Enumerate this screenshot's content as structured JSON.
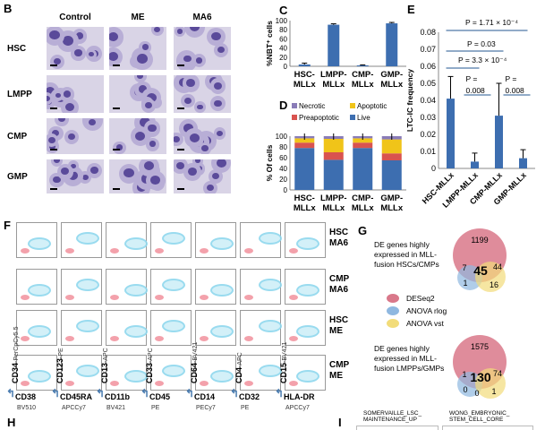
{
  "panel_labels": {
    "B": "B",
    "C": "C",
    "D": "D",
    "E": "E",
    "F": "F",
    "G": "G",
    "H": "H",
    "I": "I"
  },
  "panel_b": {
    "columns": [
      "Control",
      "ME",
      "MA6"
    ],
    "rows": [
      "HSC",
      "LMPP",
      "CMP",
      "GMP"
    ]
  },
  "chart_data": [
    {
      "type": "bar",
      "panel": "C",
      "ylabel": "%NBT⁺ cells",
      "ylim": [
        0,
        100
      ],
      "yticks": [
        0,
        20,
        40,
        60,
        80,
        100
      ],
      "categories": [
        "HSC-\nMLLx",
        "LMPP-\nMLLx",
        "CMP-\nMLLx",
        "GMP-\nMLLx"
      ],
      "values": [
        4,
        91,
        2,
        94
      ],
      "errors": [
        3,
        2,
        1,
        2
      ],
      "color": "#3d6eb0"
    },
    {
      "type": "bar",
      "stacked": true,
      "panel": "D",
      "ylabel": "% Of cells",
      "ylim": [
        0,
        100
      ],
      "yticks": [
        0,
        20,
        40,
        60,
        80,
        100
      ],
      "categories": [
        "HSC-\nMLLx",
        "LMPP-\nMLLx",
        "CMP-\nMLLx",
        "GMP-\nMLLx"
      ],
      "legend": "top",
      "series": [
        {
          "name": "Live",
          "values": [
            78,
            56,
            78,
            55
          ],
          "color": "#3d6eb0"
        },
        {
          "name": "Preapoptotic",
          "values": [
            10,
            14,
            10,
            13
          ],
          "color": "#d9534f"
        },
        {
          "name": "Apoptotic",
          "values": [
            8,
            25,
            8,
            26
          ],
          "color": "#f0c419"
        },
        {
          "name": "Necrotic",
          "values": [
            4,
            5,
            4,
            6
          ],
          "color": "#8a7cb8"
        }
      ]
    },
    {
      "type": "bar",
      "panel": "E",
      "ylabel": "LTC-IC frequency",
      "ylim": [
        0,
        0.08
      ],
      "yticks": [
        "0",
        "0.01",
        "0.02",
        "0.03",
        "0.04",
        "0.05",
        "0.06",
        "0.07",
        "0.08"
      ],
      "categories": [
        "HSC-MLLx",
        "LMPP-MLLx",
        "CMP-MLLx",
        "GMP-MLLx"
      ],
      "values": [
        0.041,
        0.004,
        0.031,
        0.006
      ],
      "errors": [
        0.013,
        0.005,
        0.019,
        0.005
      ],
      "color": "#3d6eb0",
      "annotations": [
        "P = 1.71 × 10⁻⁴",
        "P = 0.03",
        "P = 3.3 × 10⁻⁴",
        "P =\n0.008",
        "P =\n0.008"
      ]
    }
  ],
  "panel_f": {
    "row_labels": [
      [
        "HSC",
        "MA6"
      ],
      [
        "CMP",
        "MA6"
      ],
      [
        "HSC",
        "ME"
      ],
      [
        "CMP",
        "ME"
      ]
    ],
    "y_markers": [
      [
        "CD34",
        "-PerCpCy5.5"
      ],
      [
        "CD123",
        "-PE"
      ],
      [
        "CD13",
        "-APC"
      ],
      [
        "CD33",
        "-APC"
      ],
      [
        "CD64",
        "-BV421"
      ],
      [
        "CD4",
        "-APC"
      ],
      [
        "CD15",
        "-BV421"
      ]
    ],
    "x_markers": [
      [
        "CD38",
        "BV510"
      ],
      [
        "CD45RA",
        "APCCy7"
      ],
      [
        "CD11b",
        "BV421"
      ],
      [
        "CD45",
        "PE"
      ],
      [
        "CD14",
        "PECy7"
      ],
      [
        "CD32",
        "PE"
      ],
      [
        "HLA-DR",
        "APCCy7"
      ]
    ]
  },
  "panel_g": {
    "venn1": {
      "title": "DE genes highly expressed in MLL-fusion HSCs/CMPs",
      "a": "1199",
      "ab": "7",
      "abc": "45",
      "ac": "44",
      "b": "1",
      "bc": "",
      "c": "16"
    },
    "venn2": {
      "title": "DE genes highly expressed in MLL-fusion LMPPs/GMPs",
      "a": "1575",
      "ab": "1",
      "abc": "130",
      "ac": "74",
      "b": "0",
      "bc": "0",
      "c": "1"
    },
    "legend": [
      {
        "name": "DESeq2",
        "color": "#d9788a"
      },
      {
        "name": "ANOVA rlog",
        "color": "#8fb8e0"
      },
      {
        "name": "ANOVA vst",
        "color": "#f2dc7a"
      }
    ]
  },
  "panel_i": {
    "sets": [
      "SOMERVAILLE_LSC_ MAINTENANCE_UP",
      "WONG_EMBRYONIC_ STEM_CELL_CORE"
    ]
  }
}
